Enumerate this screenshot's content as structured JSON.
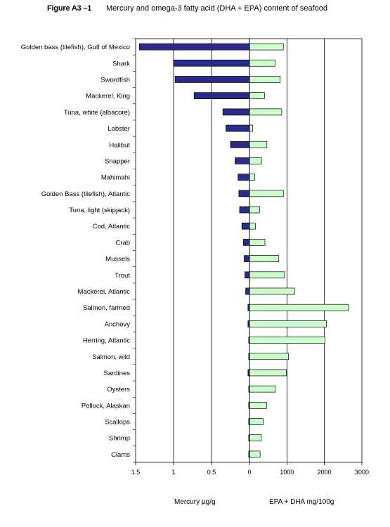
{
  "figure": {
    "label": "Figure A3 –1",
    "title": "Mercury and omega-3 fatty acid (DHA + EPA) content of seafood"
  },
  "chart_data": {
    "type": "bar",
    "orientation": "horizontal",
    "layout": "back-to-back",
    "categories": [
      "Golden bass (tilefish), Gulf of Mexico",
      "Shark",
      "Swordfish",
      "Mackerel, King",
      "Tuna, white (albacore)",
      "Lobster",
      "Halibut",
      "Snapper",
      "Mahimahi",
      "Golden Bass (tilefish), Atlantic",
      "Tuna, light (skipjack)",
      "Cod, Atlantic",
      "Crab",
      "Mussels",
      "Trout",
      "Mackerel, Atlantic",
      "Salmon, farmed",
      "Anchovy",
      "Herring, Atlantic",
      "Salmon, wild",
      "Sardines",
      "Oysters",
      "Pollock, Alaskan",
      "Scallops",
      "Shrimp",
      "Clams"
    ],
    "series": [
      {
        "name": "Mercury µg/g",
        "color": "#2b2b8c",
        "values": [
          1.45,
          1.0,
          0.98,
          0.73,
          0.35,
          0.31,
          0.25,
          0.19,
          0.15,
          0.14,
          0.13,
          0.1,
          0.08,
          0.07,
          0.06,
          0.05,
          0.02,
          0.02,
          0.01,
          0.01,
          0.02,
          0.01,
          0.01,
          0.01,
          0.01,
          0.01
        ]
      },
      {
        "name": "EPA + DHA mg/100g",
        "color": "#ccffcc",
        "values": [
          905,
          689,
          819,
          401,
          862,
          84,
          465,
          321,
          139,
          905,
          270,
          158,
          413,
          782,
          936,
          1203,
          2648,
          2055,
          2014,
          1043,
          982,
          688,
          456,
          365,
          315,
          284
        ]
      }
    ],
    "left_axis": {
      "label": "Mercury µg/g",
      "ticks": [
        "1.5",
        "1",
        "0.5",
        "0"
      ],
      "range": [
        0,
        1.5
      ],
      "reversed": true
    },
    "right_axis": {
      "label": "EPA + DHA mg/100g",
      "ticks": [
        "1000",
        "2000",
        "3000"
      ],
      "range": [
        0,
        3000
      ]
    },
    "grid": true,
    "legend": "none"
  }
}
